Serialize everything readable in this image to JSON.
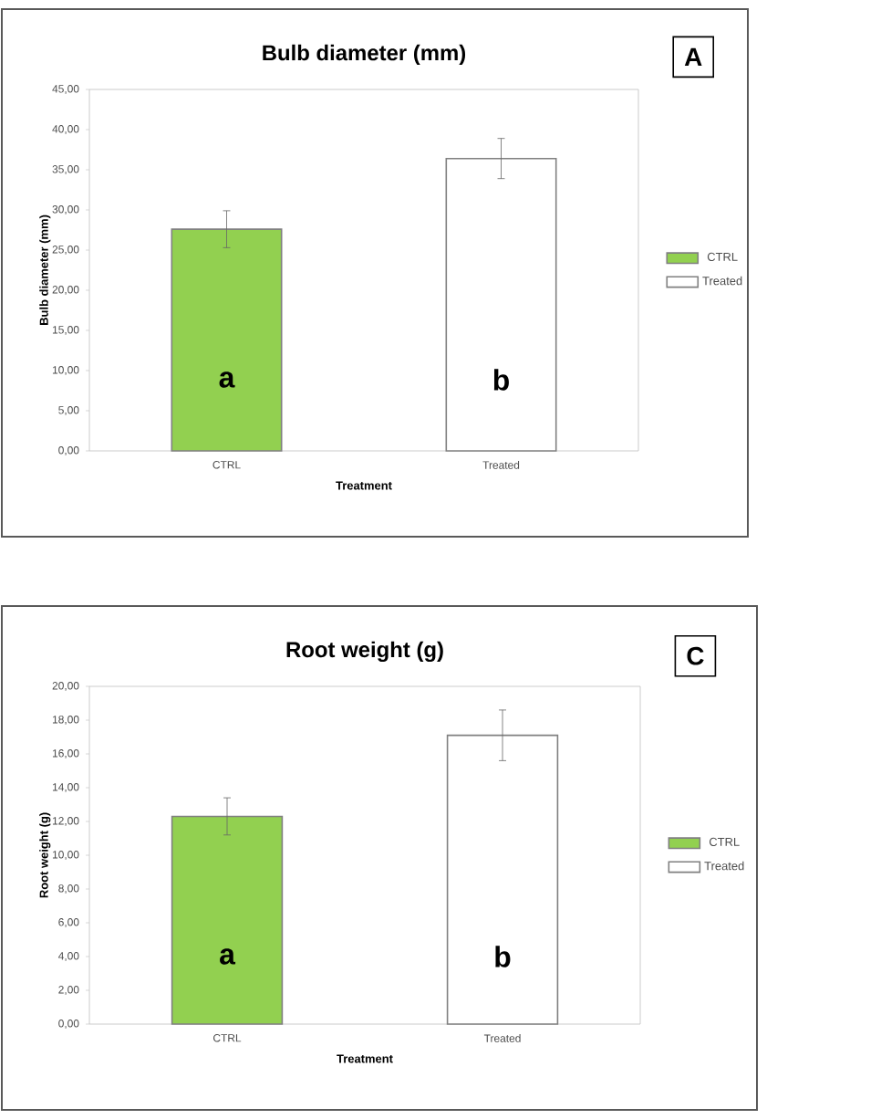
{
  "chart_data": [
    {
      "type": "bar",
      "title": "Bulb diameter (mm)",
      "xlabel": "Treatment",
      "ylabel": "Bulb diameter (mm)",
      "categories": [
        "CTRL",
        "Treated"
      ],
      "series": [
        {
          "name": "CTRL",
          "color": "#92d050",
          "values": [
            27.6,
            null
          ],
          "errors": [
            2.3,
            null
          ]
        },
        {
          "name": "Treated",
          "color": "#ffffff",
          "values": [
            null,
            36.4
          ],
          "errors": [
            null,
            2.5
          ]
        }
      ],
      "ylim": [
        0,
        45
      ],
      "yticks": [
        {
          "value": 0,
          "label": "0,00"
        },
        {
          "value": 5,
          "label": "5,00"
        },
        {
          "value": 10,
          "label": "10,00"
        },
        {
          "value": 15,
          "label": "15,00"
        },
        {
          "value": 20,
          "label": "20,00"
        },
        {
          "value": 25,
          "label": "25,00"
        },
        {
          "value": 30,
          "label": "30,00"
        },
        {
          "value": 35,
          "label": "35,00"
        },
        {
          "value": 40,
          "label": "40,00"
        },
        {
          "value": 45,
          "label": "45,00"
        }
      ],
      "legend": "right",
      "annotations": [
        "A",
        "a",
        "b"
      ]
    },
    {
      "type": "bar",
      "title": "Root weight (g)",
      "xlabel": "Treatment",
      "ylabel": "Root weight (g)",
      "categories": [
        "CTRL",
        "Treated"
      ],
      "series": [
        {
          "name": "CTRL",
          "color": "#92d050",
          "values": [
            12.3,
            null
          ],
          "errors": [
            1.1,
            null
          ]
        },
        {
          "name": "Treated",
          "color": "#ffffff",
          "values": [
            null,
            17.1
          ],
          "errors": [
            null,
            1.5
          ]
        }
      ],
      "ylim": [
        0,
        20
      ],
      "yticks": [
        {
          "value": 0,
          "label": "0,00"
        },
        {
          "value": 2,
          "label": "2,00"
        },
        {
          "value": 4,
          "label": "4,00"
        },
        {
          "value": 6,
          "label": "6,00"
        },
        {
          "value": 8,
          "label": "8,00"
        },
        {
          "value": 10,
          "label": "10,00"
        },
        {
          "value": 12,
          "label": "12,00"
        },
        {
          "value": 14,
          "label": "14,00"
        },
        {
          "value": 16,
          "label": "16,00"
        },
        {
          "value": 18,
          "label": "18,00"
        },
        {
          "value": 20,
          "label": "20,00"
        }
      ],
      "legend": "right",
      "annotations": [
        "C",
        "a",
        "b"
      ]
    }
  ]
}
